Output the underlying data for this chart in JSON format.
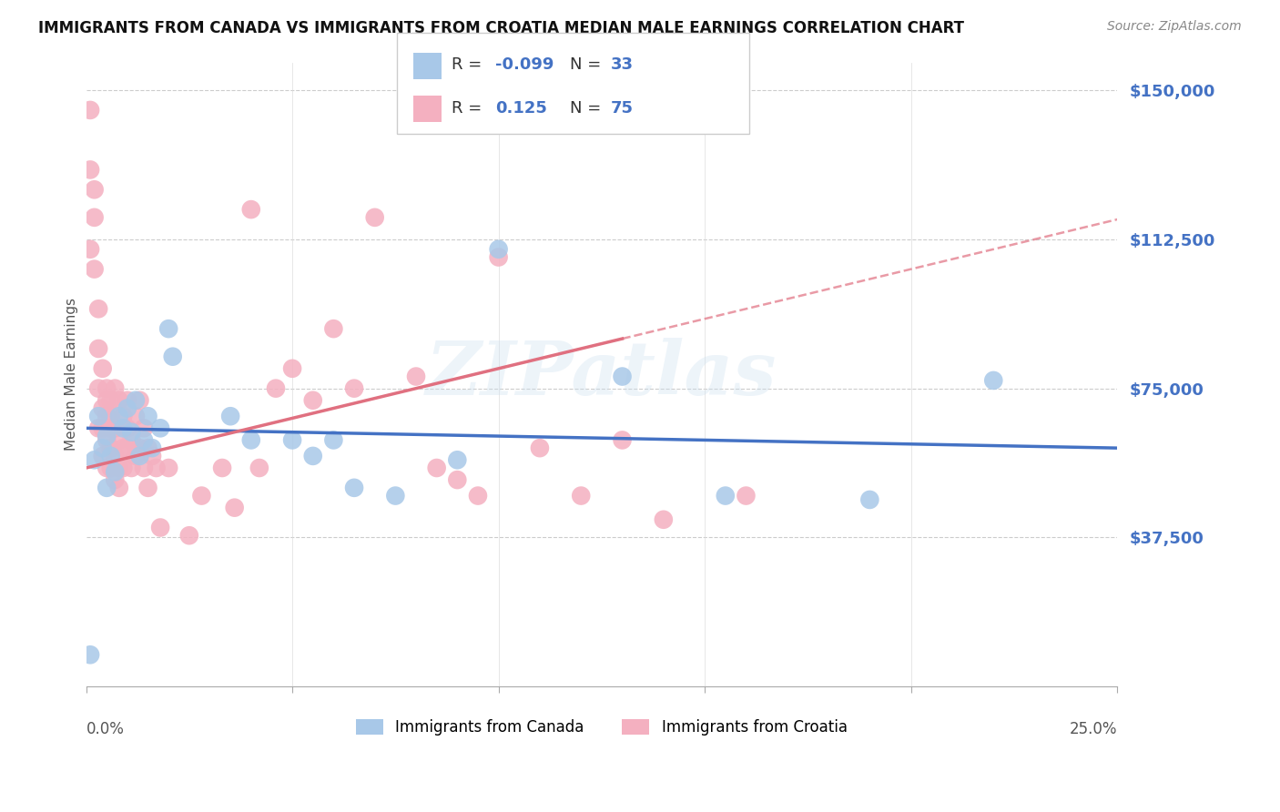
{
  "title": "IMMIGRANTS FROM CANADA VS IMMIGRANTS FROM CROATIA MEDIAN MALE EARNINGS CORRELATION CHART",
  "source": "Source: ZipAtlas.com",
  "ylabel": "Median Male Earnings",
  "ytick_labels": [
    "$37,500",
    "$75,000",
    "$112,500",
    "$150,000"
  ],
  "ytick_values": [
    37500,
    75000,
    112500,
    150000
  ],
  "ymin": 0,
  "ymax": 157000,
  "xmin": 0.0,
  "xmax": 0.25,
  "canada_color": "#a8c8e8",
  "croatia_color": "#f4b0c0",
  "canada_line_color": "#4472c4",
  "croatia_line_color": "#e07080",
  "label_color": "#4472c4",
  "watermark": "ZIPatlas",
  "background_color": "#ffffff",
  "canada_scatter_x": [
    0.001,
    0.002,
    0.003,
    0.004,
    0.005,
    0.005,
    0.006,
    0.007,
    0.008,
    0.009,
    0.01,
    0.011,
    0.012,
    0.013,
    0.014,
    0.015,
    0.016,
    0.018,
    0.02,
    0.021,
    0.035,
    0.04,
    0.05,
    0.055,
    0.06,
    0.065,
    0.075,
    0.09,
    0.1,
    0.13,
    0.155,
    0.19,
    0.22
  ],
  "canada_scatter_y": [
    8000,
    57000,
    68000,
    60000,
    63000,
    50000,
    58000,
    54000,
    68000,
    65000,
    70000,
    64000,
    72000,
    58000,
    62000,
    68000,
    60000,
    65000,
    90000,
    83000,
    68000,
    62000,
    62000,
    58000,
    62000,
    50000,
    48000,
    57000,
    110000,
    78000,
    48000,
    47000,
    77000
  ],
  "croatia_scatter_x": [
    0.001,
    0.001,
    0.001,
    0.002,
    0.002,
    0.002,
    0.003,
    0.003,
    0.003,
    0.003,
    0.004,
    0.004,
    0.004,
    0.004,
    0.005,
    0.005,
    0.005,
    0.005,
    0.005,
    0.006,
    0.006,
    0.006,
    0.006,
    0.006,
    0.007,
    0.007,
    0.007,
    0.007,
    0.008,
    0.008,
    0.008,
    0.008,
    0.009,
    0.009,
    0.009,
    0.01,
    0.01,
    0.01,
    0.011,
    0.011,
    0.012,
    0.012,
    0.013,
    0.013,
    0.014,
    0.014,
    0.015,
    0.015,
    0.016,
    0.017,
    0.018,
    0.02,
    0.025,
    0.028,
    0.033,
    0.036,
    0.04,
    0.042,
    0.046,
    0.05,
    0.055,
    0.06,
    0.065,
    0.07,
    0.08,
    0.085,
    0.09,
    0.095,
    0.1,
    0.11,
    0.12,
    0.13,
    0.14,
    0.16
  ],
  "croatia_scatter_y": [
    130000,
    145000,
    110000,
    125000,
    118000,
    105000,
    95000,
    85000,
    75000,
    65000,
    80000,
    70000,
    65000,
    58000,
    72000,
    62000,
    55000,
    68000,
    75000,
    68000,
    60000,
    72000,
    65000,
    55000,
    75000,
    65000,
    58000,
    52000,
    72000,
    62000,
    55000,
    50000,
    68000,
    60000,
    55000,
    72000,
    65000,
    60000,
    62000,
    55000,
    68000,
    58000,
    72000,
    60000,
    65000,
    55000,
    60000,
    50000,
    58000,
    55000,
    40000,
    55000,
    38000,
    48000,
    55000,
    45000,
    120000,
    55000,
    75000,
    80000,
    72000,
    90000,
    75000,
    118000,
    78000,
    55000,
    52000,
    48000,
    108000,
    60000,
    48000,
    62000,
    42000,
    48000
  ]
}
